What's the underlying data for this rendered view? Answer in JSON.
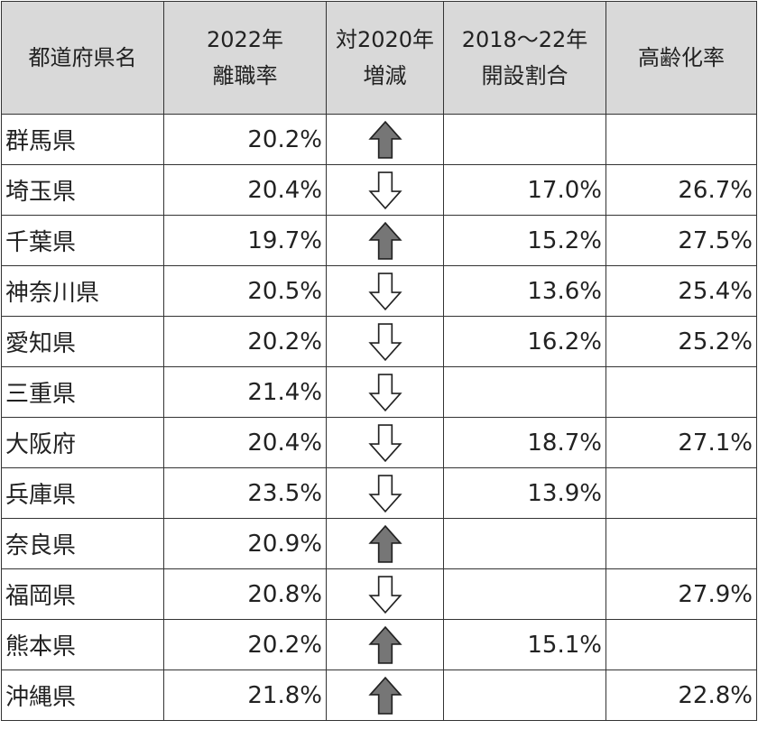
{
  "colors": {
    "header_bg": "#d9d9d9",
    "arrow_up_fill": "#767676",
    "arrow_down_fill": "#ffffff"
  },
  "header": {
    "col1": [
      "都道府県名"
    ],
    "col2": [
      "2022年",
      "離職率"
    ],
    "col3": [
      "対2020年",
      "増減"
    ],
    "col4": [
      "2018～22年",
      "開設割合"
    ],
    "col5": [
      "高齢化率"
    ]
  },
  "rows": [
    {
      "pref": "群馬県",
      "rate": "20.2%",
      "trend": "up",
      "open_ratio": "",
      "aging": ""
    },
    {
      "pref": "埼玉県",
      "rate": "20.4%",
      "trend": "down",
      "open_ratio": "17.0%",
      "aging": "26.7%"
    },
    {
      "pref": "千葉県",
      "rate": "19.7%",
      "trend": "up",
      "open_ratio": "15.2%",
      "aging": "27.5%"
    },
    {
      "pref": "神奈川県",
      "rate": "20.5%",
      "trend": "down",
      "open_ratio": "13.6%",
      "aging": "25.4%"
    },
    {
      "pref": "愛知県",
      "rate": "20.2%",
      "trend": "down",
      "open_ratio": "16.2%",
      "aging": "25.2%"
    },
    {
      "pref": "三重県",
      "rate": "21.4%",
      "trend": "down",
      "open_ratio": "",
      "aging": ""
    },
    {
      "pref": "大阪府",
      "rate": "20.4%",
      "trend": "down",
      "open_ratio": "18.7%",
      "aging": "27.1%"
    },
    {
      "pref": "兵庫県",
      "rate": "23.5%",
      "trend": "down",
      "open_ratio": "13.9%",
      "aging": ""
    },
    {
      "pref": "奈良県",
      "rate": "20.9%",
      "trend": "up",
      "open_ratio": "",
      "aging": ""
    },
    {
      "pref": "福岡県",
      "rate": "20.8%",
      "trend": "down",
      "open_ratio": "",
      "aging": "27.9%"
    },
    {
      "pref": "熊本県",
      "rate": "20.2%",
      "trend": "up",
      "open_ratio": "15.1%",
      "aging": ""
    },
    {
      "pref": "沖縄県",
      "rate": "21.8%",
      "trend": "up",
      "open_ratio": "",
      "aging": "22.8%"
    }
  ]
}
